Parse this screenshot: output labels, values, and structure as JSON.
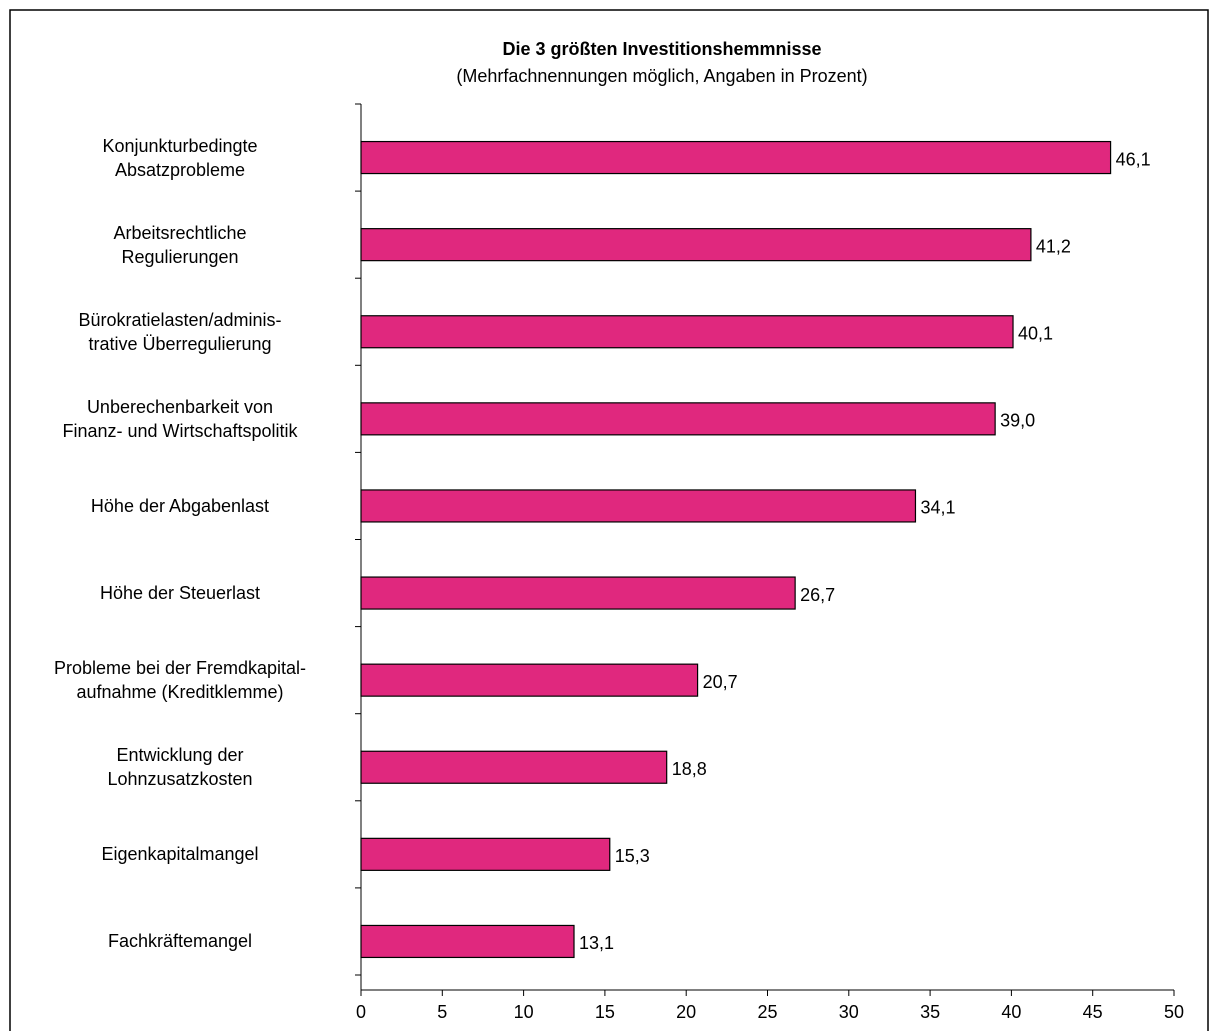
{
  "chart_data": {
    "type": "bar",
    "orientation": "horizontal",
    "title": "Die 3 größten Investitionshemmnisse",
    "subtitle": "(Mehrfachnennungen möglich, Angaben in Prozent)",
    "categories": [
      "Konjunkturbedingte\nAbsatzprobleme",
      "Arbeitsrechtliche\nRegulierungen",
      "Bürokratielasten/adminis-\ntrative Überregulierung",
      "Unberechenbarkeit von\nFinanz- und Wirtschaftspolitik",
      "Höhe der Abgabenlast",
      "Höhe der Steuerlast",
      "Probleme bei der Fremdkapital-\naufnahme (Kreditklemme)",
      "Entwicklung der\nLohnzusatzkosten",
      "Eigenkapitalmangel",
      "Fachkräftemangel"
    ],
    "values": [
      46.1,
      41.2,
      40.1,
      39.0,
      34.1,
      26.7,
      20.7,
      18.8,
      15.3,
      13.1
    ],
    "value_labels": [
      "46,1",
      "41,2",
      "40,1",
      "39,0",
      "34,1",
      "26,7",
      "20,7",
      "18,8",
      "15,3",
      "13,1"
    ],
    "color": "#e0287e",
    "xlim": [
      0,
      50
    ],
    "xticks": [
      0,
      5,
      10,
      15,
      20,
      25,
      30,
      35,
      40,
      45,
      50
    ]
  }
}
